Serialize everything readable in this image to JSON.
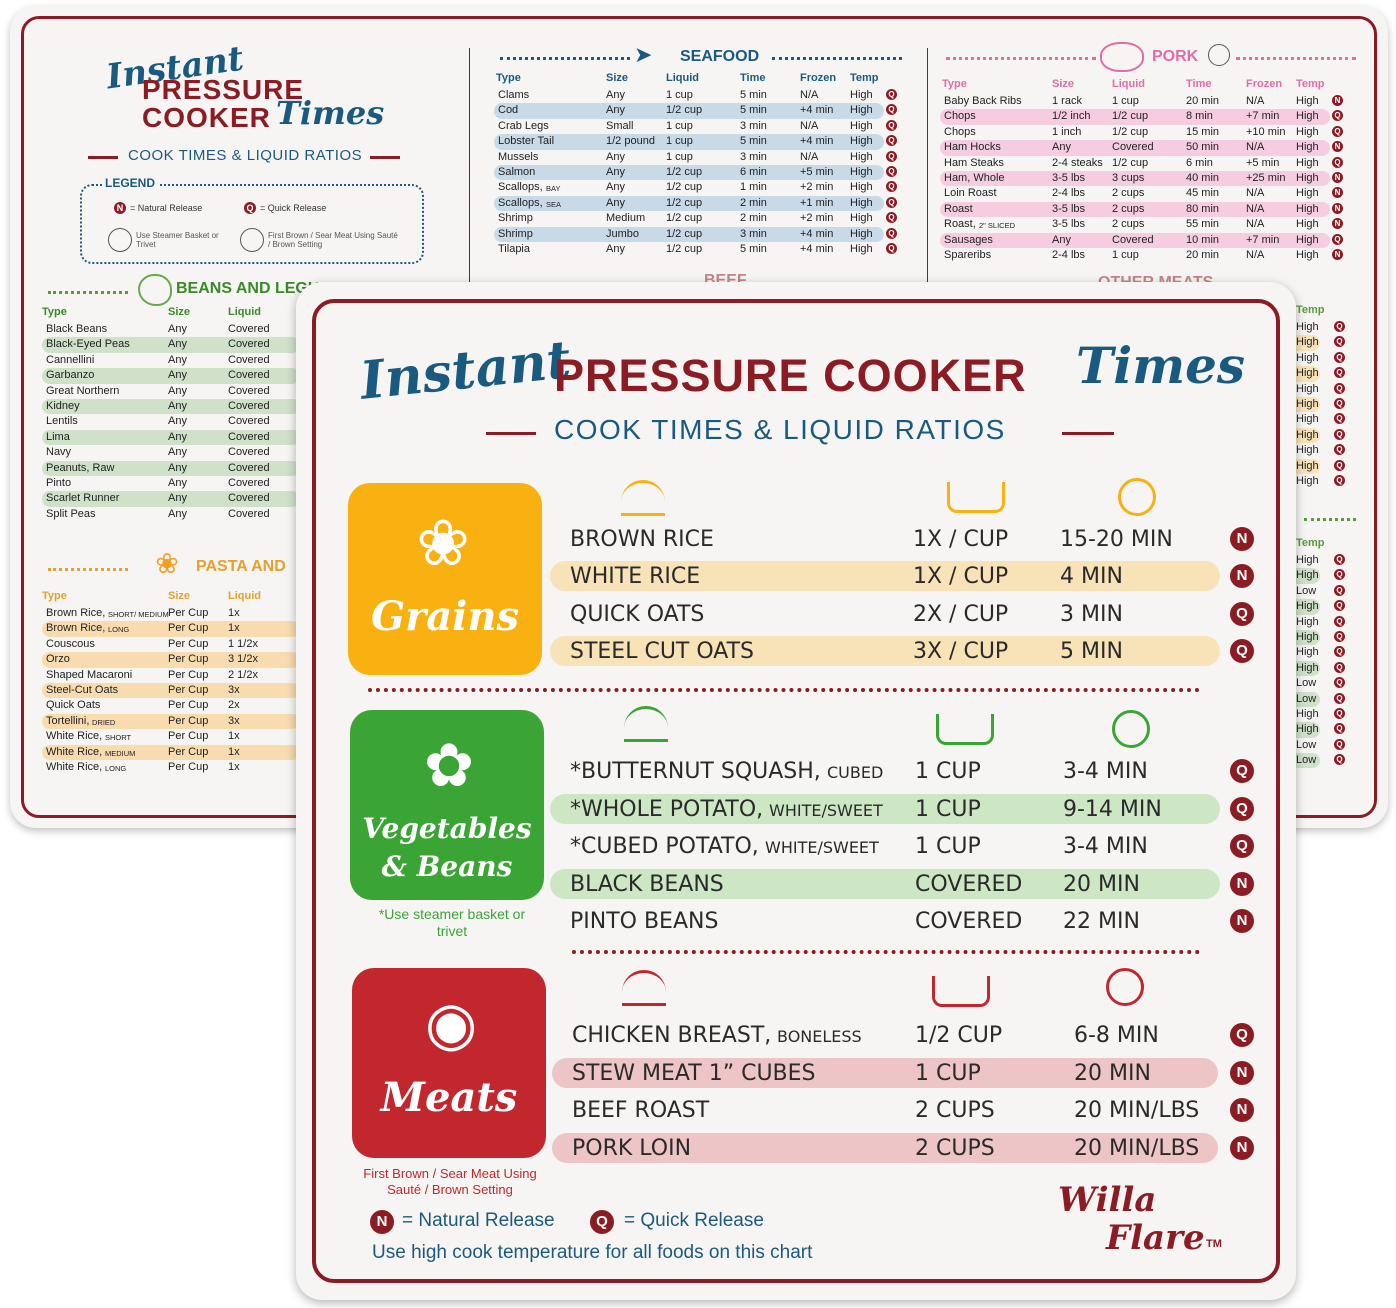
{
  "back": {
    "logo": {
      "word1": "Instant",
      "word2": "PRESSURE",
      "word3": "COOKER",
      "word4": "Times"
    },
    "subtitle": "COOK TIMES & LIQUID RATIOS",
    "legend": {
      "title": "LEGEND",
      "n": "N",
      "n_label": "= Natural Release",
      "q": "Q",
      "q_label": "= Quick Release",
      "basket_label": "Use Steamer Basket or Trivet",
      "brown_label": "First Brown / Sear Meat Using Sauté / Brown Setting"
    },
    "beans": {
      "title": "BEANS AND LEGUMES",
      "headers": [
        "Type",
        "Size",
        "Liquid"
      ],
      "rows": [
        [
          "Black Beans",
          "Any",
          "Covered"
        ],
        [
          "Black-Eyed Peas",
          "Any",
          "Covered"
        ],
        [
          "Cannellini",
          "Any",
          "Covered"
        ],
        [
          "Garbanzo",
          "Any",
          "Covered"
        ],
        [
          "Great Northern",
          "Any",
          "Covered"
        ],
        [
          "Kidney",
          "Any",
          "Covered"
        ],
        [
          "Lentils",
          "Any",
          "Covered"
        ],
        [
          "Lima",
          "Any",
          "Covered"
        ],
        [
          "Navy",
          "Any",
          "Covered"
        ],
        [
          "Peanuts, Raw",
          "Any",
          "Covered"
        ],
        [
          "Pinto",
          "Any",
          "Covered"
        ],
        [
          "Scarlet Runner",
          "Any",
          "Covered"
        ],
        [
          "Split Peas",
          "Any",
          "Covered"
        ]
      ]
    },
    "pasta": {
      "title": "PASTA AND",
      "headers": [
        "Type",
        "Size",
        "Liquid"
      ],
      "rows": [
        [
          "Brown Rice,",
          "SHORT/ MEDIUM",
          "Per Cup",
          "1x"
        ],
        [
          "Brown Rice,",
          "LONG",
          "Per Cup",
          "1x"
        ],
        [
          "Couscous",
          "",
          "Per Cup",
          "1 1/2x"
        ],
        [
          "Orzo",
          "",
          "Per Cup",
          "3 1/2x"
        ],
        [
          "Shaped Macaroni",
          "",
          "Per Cup",
          "2 1/2x"
        ],
        [
          "Steel-Cut Oats",
          "",
          "Per Cup",
          "3x"
        ],
        [
          "Quick Oats",
          "",
          "Per Cup",
          "2x"
        ],
        [
          "Tortellini,",
          "DRIED",
          "Per Cup",
          "3x"
        ],
        [
          "White Rice,",
          "SHORT",
          "Per Cup",
          "1x"
        ],
        [
          "White Rice,",
          "MEDIUM",
          "Per Cup",
          "1x"
        ],
        [
          "White Rice,",
          "LONG",
          "Per Cup",
          "1x"
        ]
      ]
    },
    "seafood": {
      "title": "SEAFOOD",
      "headers": [
        "Type",
        "Size",
        "Liquid",
        "Time",
        "Frozen",
        "Temp"
      ],
      "rows": [
        [
          "Clams",
          "",
          "Any",
          "1 cup",
          "5 min",
          "N/A",
          "High",
          "Q"
        ],
        [
          "Cod",
          "",
          "Any",
          "1/2 cup",
          "5 min",
          "+4 min",
          "High",
          "Q"
        ],
        [
          "Crab Legs",
          "",
          "Small",
          "1 cup",
          "3 min",
          "N/A",
          "High",
          "Q"
        ],
        [
          "Lobster Tail",
          "",
          "1/2 pound",
          "1 cup",
          "5 min",
          "+4 min",
          "High",
          "Q"
        ],
        [
          "Mussels",
          "",
          "Any",
          "1 cup",
          "3 min",
          "N/A",
          "High",
          "Q"
        ],
        [
          "Salmon",
          "",
          "Any",
          "1/2 cup",
          "6 min",
          "+5 min",
          "High",
          "Q"
        ],
        [
          "Scallops,",
          "BAY",
          "Any",
          "1/2 cup",
          "1 min",
          "+2 min",
          "High",
          "Q"
        ],
        [
          "Scallops,",
          "SEA",
          "Any",
          "1/2 cup",
          "2 min",
          "+1 min",
          "High",
          "Q"
        ],
        [
          "Shrimp",
          "",
          "Medium",
          "1/2 cup",
          "2 min",
          "+2 min",
          "High",
          "Q"
        ],
        [
          "Shrimp",
          "",
          "Jumbo",
          "1/2 cup",
          "3 min",
          "+4 min",
          "High",
          "Q"
        ],
        [
          "Tilapia",
          "",
          "Any",
          "1/2 cup",
          "5 min",
          "+4 min",
          "High",
          "Q"
        ]
      ],
      "next_title": "BEEF"
    },
    "pork": {
      "title": "PORK",
      "headers": [
        "Type",
        "Size",
        "Liquid",
        "Time",
        "Frozen",
        "Temp"
      ],
      "rows": [
        [
          "Baby Back Ribs",
          "",
          "1 rack",
          "1 cup",
          "20 min",
          "N/A",
          "High",
          "N"
        ],
        [
          "Chops",
          "",
          "1/2 inch",
          "1/2 cup",
          "8 min",
          "+7 min",
          "High",
          "Q"
        ],
        [
          "Chops",
          "",
          "1 inch",
          "1/2 cup",
          "15 min",
          "+10 min",
          "High",
          "Q"
        ],
        [
          "Ham Hocks",
          "",
          "Any",
          "Covered",
          "50 min",
          "N/A",
          "High",
          "N"
        ],
        [
          "Ham Steaks",
          "",
          "2-4 steaks",
          "1/2 cup",
          "6 min",
          "+5 min",
          "High",
          "Q"
        ],
        [
          "Ham, Whole",
          "",
          "3-5 lbs",
          "3 cups",
          "40 min",
          "+25 min",
          "High",
          "N"
        ],
        [
          "Loin Roast",
          "",
          "2-4 lbs",
          "2 cups",
          "45 min",
          "N/A",
          "High",
          "N"
        ],
        [
          "Roast",
          "",
          "3-5 lbs",
          "2 cups",
          "80 min",
          "N/A",
          "High",
          "N"
        ],
        [
          "Roast,",
          "2\" SLICED",
          "3-5 lbs",
          "2 cups",
          "55 min",
          "N/A",
          "High",
          "N"
        ],
        [
          "Sausages",
          "",
          "Any",
          "Covered",
          "10 min",
          "+7 min",
          "High",
          "Q"
        ],
        [
          "Spareribs",
          "",
          "2-4 lbs",
          "1 cup",
          "20 min",
          "N/A",
          "High",
          "N"
        ]
      ],
      "next_title": "OTHER MEATS"
    },
    "right_temps_a": [
      "Temp",
      "High",
      "High",
      "High",
      "High",
      "High",
      "High",
      "High",
      "High",
      "High",
      "High",
      "High"
    ],
    "right_temps_a_rel": [
      "",
      "Q",
      "Q",
      "Q",
      "Q",
      "Q",
      "Q",
      "Q",
      "Q",
      "Q",
      "Q",
      "Q"
    ],
    "right_temps_b": [
      "Temp",
      "High",
      "High",
      "Low",
      "High",
      "High",
      "High",
      "High",
      "High",
      "Low",
      "Low",
      "High",
      "High",
      "Low",
      "Low"
    ],
    "right_temps_b_rel": [
      "",
      "Q",
      "Q",
      "Q",
      "Q",
      "Q",
      "Q",
      "Q",
      "Q",
      "Q",
      "Q",
      "Q",
      "Q",
      "Q",
      "Q"
    ]
  },
  "front": {
    "title_script1": "Instant",
    "title_main": "PRESSURE COOKER",
    "title_script2": "Times",
    "subtitle": "COOK TIMES & LIQUID RATIOS",
    "grains": {
      "label": "Grains",
      "rows": [
        {
          "name": "BROWN RICE",
          "qual": "",
          "liquid": "1X / CUP",
          "time": "15-20 MIN",
          "rel": "N"
        },
        {
          "name": "WHITE RICE",
          "qual": "",
          "liquid": "1X / CUP",
          "time": "4 MIN",
          "rel": "N"
        },
        {
          "name": "QUICK OATS",
          "qual": "",
          "liquid": "2X / CUP",
          "time": "3 MIN",
          "rel": "Q"
        },
        {
          "name": "STEEL CUT OATS",
          "qual": "",
          "liquid": "3X / CUP",
          "time": "5 MIN",
          "rel": "Q"
        }
      ]
    },
    "veg": {
      "label1": "Vegetables",
      "label2": "& Beans",
      "note": "*Use steamer basket or trivet",
      "rows": [
        {
          "name": "*BUTTERNUT SQUASH,",
          "qual": "CUBED",
          "liquid": "1 CUP",
          "time": "3-4 MIN",
          "rel": "Q"
        },
        {
          "name": "*WHOLE POTATO,",
          "qual": "WHITE/SWEET",
          "liquid": "1 CUP",
          "time": "9-14 MIN",
          "rel": "Q"
        },
        {
          "name": "*CUBED POTATO,",
          "qual": "WHITE/SWEET",
          "liquid": "1 CUP",
          "time": "3-4 MIN",
          "rel": "Q"
        },
        {
          "name": "BLACK BEANS",
          "qual": "",
          "liquid": "COVERED",
          "time": "20 MIN",
          "rel": "N"
        },
        {
          "name": "PINTO BEANS",
          "qual": "",
          "liquid": "COVERED",
          "time": "22 MIN",
          "rel": "N"
        }
      ]
    },
    "meats": {
      "label": "Meats",
      "note": "First Brown / Sear Meat Using Sauté / Brown Setting",
      "rows": [
        {
          "name": "CHICKEN BREAST,",
          "qual": "BONELESS",
          "liquid": "1/2 CUP",
          "time": "6-8 MIN",
          "rel": "Q"
        },
        {
          "name": "STEW MEAT 1” CUBES",
          "qual": "",
          "liquid": "1 CUP",
          "time": "20 MIN",
          "rel": "N"
        },
        {
          "name": "BEEF ROAST",
          "qual": "",
          "liquid": "2 CUPS",
          "time": "20 MIN/LBS",
          "rel": "N"
        },
        {
          "name": "PORK LOIN",
          "qual": "",
          "liquid": "2 CUPS",
          "time": "20 MIN/LBS",
          "rel": "N"
        }
      ]
    },
    "legend": {
      "n": "N",
      "n_label": "= Natural Release",
      "q": "Q",
      "q_label": "= Quick Release",
      "note": "Use high cook temperature for all foods on this chart"
    },
    "brand": {
      "line1": "Willa",
      "line2": "Flare",
      "tm": "TM"
    }
  },
  "colors": {
    "burgundy": "#8b1c24",
    "blue": "#1b5a80",
    "grain": "#f9b112",
    "veg": "#3aa535",
    "meat": "#c1272d",
    "grain_hl": "#f8e2b7",
    "veg_hl": "#cde7c5",
    "meat_hl": "#eec5c6",
    "seafood_hl": "#c8d9e8",
    "pork_hl": "#f6cde0",
    "beans_hl": "#cfe1c9",
    "pasta_hl": "#f8dcb0"
  }
}
